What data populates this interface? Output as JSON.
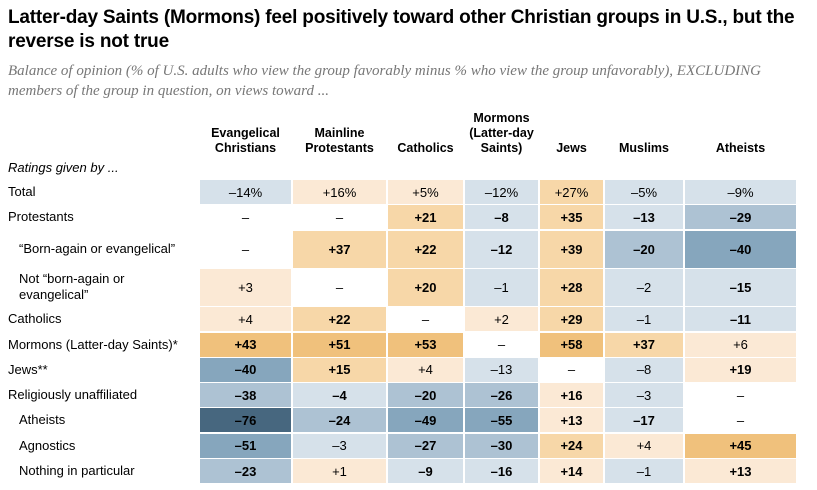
{
  "chart_data": {
    "type": "table",
    "title": "Latter-day Saints (Mormons) feel positively toward other Christian groups in U.S., but the reverse is not true",
    "subtitle": "Balance of opinion (% of U.S. adults who view the group favorably minus % who view the group unfavorably), EXCLUDING members of the group in question, on views toward ...",
    "row_header": "Ratings given by ...",
    "columns": [
      "Evangelical Christians",
      "Mainline Protestants",
      "Catholics",
      "Mormons (Latter-day Saints)",
      "Jews",
      "Muslims",
      "Atheists"
    ],
    "colors": {
      "o1": "#fbe9d5",
      "o2": "#f7d7a8",
      "o3": "#f0c17c",
      "b1": "#d6e1ea",
      "b2": "#adc2d3",
      "b3": "#86a6bd",
      "b4": "#47677f",
      "none": "#ffffff"
    },
    "rows": [
      {
        "label": "Total",
        "indent": false,
        "cells": [
          [
            "–14%",
            "b1",
            0
          ],
          [
            "+16%",
            "o1",
            0
          ],
          [
            "+5%",
            "o1",
            0
          ],
          [
            "–12%",
            "b1",
            0
          ],
          [
            "+27%",
            "o2",
            0
          ],
          [
            "–5%",
            "b1",
            0
          ],
          [
            "–9%",
            "b1",
            0
          ]
        ]
      },
      {
        "label": "Protestants",
        "indent": false,
        "cells": [
          [
            "–",
            "none",
            0
          ],
          [
            "–",
            "none",
            0
          ],
          [
            "+21",
            "o2",
            1
          ],
          [
            "–8",
            "b1",
            1
          ],
          [
            "+35",
            "o2",
            1
          ],
          [
            "–13",
            "b1",
            1
          ],
          [
            "–29",
            "b2",
            1
          ]
        ]
      },
      {
        "label": "“Born-again or evangelical”",
        "indent": true,
        "tall": true,
        "cells": [
          [
            "–",
            "none",
            0
          ],
          [
            "+37",
            "o2",
            1
          ],
          [
            "+22",
            "o2",
            1
          ],
          [
            "–12",
            "b1",
            1
          ],
          [
            "+39",
            "o2",
            1
          ],
          [
            "–20",
            "b2",
            1
          ],
          [
            "–40",
            "b3",
            1
          ]
        ]
      },
      {
        "label": "Not “born-again or evangelical”",
        "indent": true,
        "tall": true,
        "cells": [
          [
            "+3",
            "o1",
            0
          ],
          [
            "–",
            "none",
            0
          ],
          [
            "+20",
            "o2",
            1
          ],
          [
            "–1",
            "b1",
            0
          ],
          [
            "+28",
            "o2",
            1
          ],
          [
            "–2",
            "b1",
            0
          ],
          [
            "–15",
            "b1",
            1
          ]
        ]
      },
      {
        "label": "Catholics",
        "indent": false,
        "cells": [
          [
            "+4",
            "o1",
            0
          ],
          [
            "+22",
            "o2",
            1
          ],
          [
            "–",
            "none",
            0
          ],
          [
            "+2",
            "o1",
            0
          ],
          [
            "+29",
            "o2",
            1
          ],
          [
            "–1",
            "b1",
            0
          ],
          [
            "–11",
            "b1",
            1
          ]
        ]
      },
      {
        "label": "Mormons (Latter-day Saints)*",
        "indent": false,
        "cells": [
          [
            "+43",
            "o3",
            1
          ],
          [
            "+51",
            "o3",
            1
          ],
          [
            "+53",
            "o3",
            1
          ],
          [
            "–",
            "none",
            0
          ],
          [
            "+58",
            "o3",
            1
          ],
          [
            "+37",
            "o2",
            1
          ],
          [
            "+6",
            "o1",
            0
          ]
        ]
      },
      {
        "label": "Jews**",
        "indent": false,
        "cells": [
          [
            "–40",
            "b3",
            1
          ],
          [
            "+15",
            "o2",
            1
          ],
          [
            "+4",
            "o1",
            0
          ],
          [
            "–13",
            "b1",
            0
          ],
          [
            "–",
            "none",
            0
          ],
          [
            "–8",
            "b1",
            0
          ],
          [
            "+19",
            "o1",
            1
          ]
        ]
      },
      {
        "label": "Religiously unaffiliated",
        "indent": false,
        "cells": [
          [
            "–38",
            "b2",
            1
          ],
          [
            "–4",
            "b1",
            1
          ],
          [
            "–20",
            "b2",
            1
          ],
          [
            "–26",
            "b2",
            1
          ],
          [
            "+16",
            "o1",
            1
          ],
          [
            "–3",
            "b1",
            0
          ],
          [
            "–",
            "none",
            0
          ]
        ]
      },
      {
        "label": "Atheists",
        "indent": true,
        "cells": [
          [
            "–76",
            "b4",
            1
          ],
          [
            "–24",
            "b2",
            1
          ],
          [
            "–49",
            "b3",
            1
          ],
          [
            "–55",
            "b3",
            1
          ],
          [
            "+13",
            "o1",
            1
          ],
          [
            "–17",
            "b1",
            1
          ],
          [
            "–",
            "none",
            0
          ]
        ]
      },
      {
        "label": "Agnostics",
        "indent": true,
        "cells": [
          [
            "–51",
            "b3",
            1
          ],
          [
            "–3",
            "b1",
            0
          ],
          [
            "–27",
            "b2",
            1
          ],
          [
            "–30",
            "b2",
            1
          ],
          [
            "+24",
            "o2",
            1
          ],
          [
            "+4",
            "o1",
            0
          ],
          [
            "+45",
            "o3",
            1
          ]
        ]
      },
      {
        "label": "Nothing in particular",
        "indent": true,
        "cells": [
          [
            "–23",
            "b2",
            1
          ],
          [
            "+1",
            "o1",
            0
          ],
          [
            "–9",
            "b1",
            1
          ],
          [
            "–16",
            "b1",
            1
          ],
          [
            "+14",
            "o1",
            1
          ],
          [
            "–1",
            "b1",
            0
          ],
          [
            "+13",
            "o1",
            1
          ]
        ]
      }
    ]
  }
}
